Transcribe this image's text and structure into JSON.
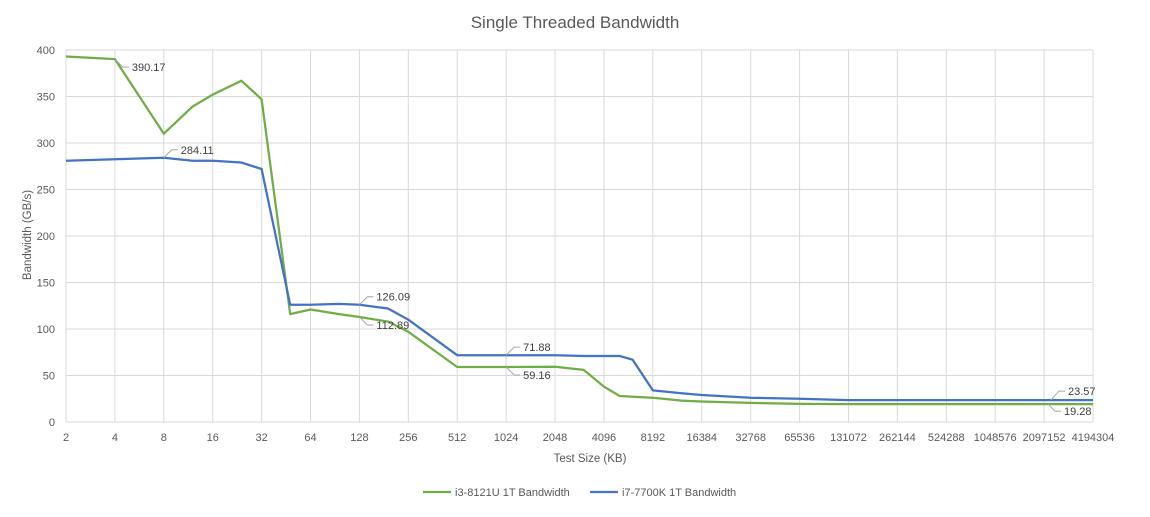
{
  "chart_data": {
    "type": "line",
    "title": "Single Threaded Bandwidth",
    "xlabel": "Test Size (KB)",
    "ylabel": "Bandwidth (GB/s)",
    "ylim": [
      0,
      400
    ],
    "yticks": [
      0,
      50,
      100,
      150,
      200,
      250,
      300,
      350,
      400
    ],
    "x_scale": "log2",
    "xlim": [
      2,
      4194304
    ],
    "xticks": [
      "2",
      "4",
      "8",
      "16",
      "32",
      "64",
      "128",
      "256",
      "512",
      "1024",
      "2048",
      "4096",
      "8192",
      "16384",
      "32768",
      "65536",
      "131072",
      "262144",
      "524288",
      "1048576",
      "2097152",
      "4194304"
    ],
    "grid": true,
    "legend_position": "bottom",
    "series": [
      {
        "name": "i3-8121U 1T Bandwidth",
        "color": "#70ad47",
        "points": [
          [
            2,
            393
          ],
          [
            4,
            390.17
          ],
          [
            8,
            310
          ],
          [
            12,
            339
          ],
          [
            16,
            352
          ],
          [
            24,
            367
          ],
          [
            32,
            347
          ],
          [
            48,
            116
          ],
          [
            64,
            121
          ],
          [
            96,
            116
          ],
          [
            128,
            112.89
          ],
          [
            192,
            108
          ],
          [
            256,
            97
          ],
          [
            512,
            59.16
          ],
          [
            1024,
            59.16
          ],
          [
            2048,
            59.5
          ],
          [
            3072,
            56
          ],
          [
            4096,
            38
          ],
          [
            5120,
            28
          ],
          [
            8192,
            26
          ],
          [
            12288,
            23
          ],
          [
            16384,
            22
          ],
          [
            32768,
            20.5
          ],
          [
            65536,
            19.5
          ],
          [
            131072,
            19.3
          ],
          [
            262144,
            19.3
          ],
          [
            524288,
            19.3
          ],
          [
            1048576,
            19.3
          ],
          [
            2097152,
            19.3
          ],
          [
            4194304,
            19.28
          ]
        ],
        "labels": [
          {
            "x": 4,
            "y": 390.17,
            "text": "390.17"
          },
          {
            "x": 128,
            "y": 112.89,
            "text": "112.89"
          },
          {
            "x": 1024,
            "y": 59.16,
            "text": "59.16"
          },
          {
            "x": 4194304,
            "y": 19.28,
            "text": "19.28"
          }
        ]
      },
      {
        "name": "i7-7700K 1T Bandwidth",
        "color": "#4472c4",
        "points": [
          [
            2,
            281
          ],
          [
            4,
            282.5
          ],
          [
            8,
            284.11
          ],
          [
            12,
            281
          ],
          [
            16,
            281
          ],
          [
            24,
            279
          ],
          [
            32,
            272
          ],
          [
            48,
            126
          ],
          [
            64,
            126
          ],
          [
            96,
            127
          ],
          [
            128,
            126.09
          ],
          [
            192,
            122
          ],
          [
            256,
            110
          ],
          [
            512,
            71.88
          ],
          [
            1024,
            71.88
          ],
          [
            2048,
            71.88
          ],
          [
            3072,
            71
          ],
          [
            4096,
            71
          ],
          [
            5120,
            71
          ],
          [
            6144,
            67
          ],
          [
            8192,
            34
          ],
          [
            12288,
            31
          ],
          [
            16384,
            29
          ],
          [
            32768,
            26
          ],
          [
            65536,
            25
          ],
          [
            131072,
            23.6
          ],
          [
            262144,
            23.6
          ],
          [
            524288,
            23.6
          ],
          [
            1048576,
            23.6
          ],
          [
            2097152,
            23.6
          ],
          [
            4194304,
            23.57
          ]
        ],
        "labels": [
          {
            "x": 8,
            "y": 284.11,
            "text": "284.11"
          },
          {
            "x": 128,
            "y": 126.09,
            "text": "126.09"
          },
          {
            "x": 1024,
            "y": 71.88,
            "text": "71.88"
          },
          {
            "x": 4194304,
            "y": 23.57,
            "text": "23.57"
          }
        ]
      }
    ]
  }
}
